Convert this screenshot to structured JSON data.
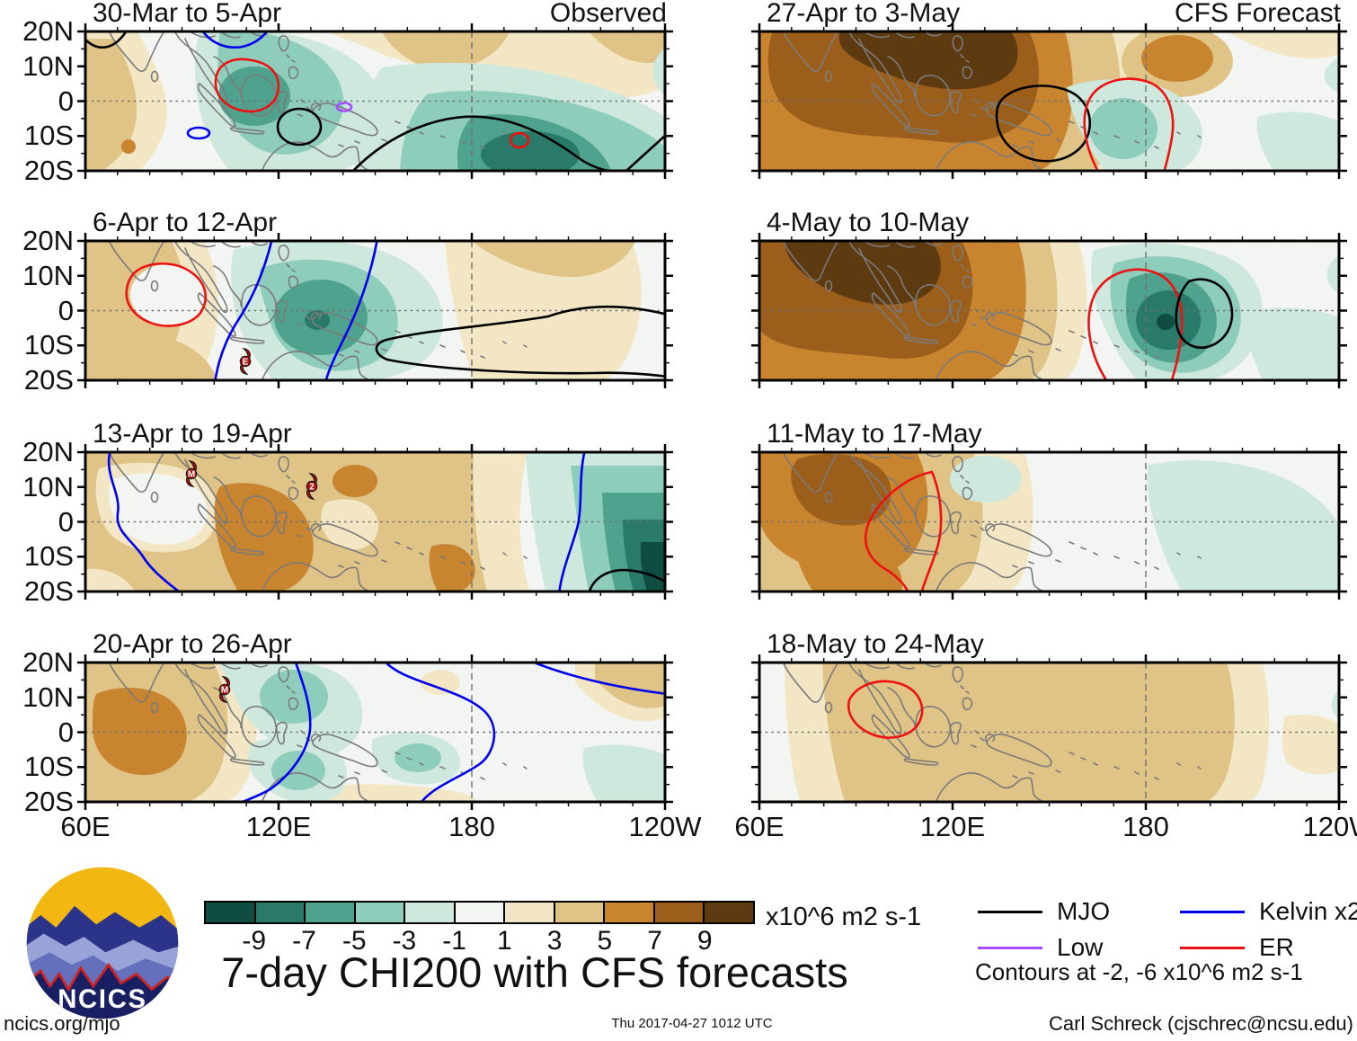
{
  "title": "7-day CHI200 with CFS forecasts",
  "panels": [
    {
      "title": "30-Mar to 5-Apr",
      "subtitle": "Observed"
    },
    {
      "title": "6-Apr to 12-Apr",
      "storms": [
        {
          "label": "E"
        }
      ]
    },
    {
      "title": "13-Apr to 19-Apr",
      "storms": [
        {
          "label": "M"
        },
        {
          "label": "2"
        }
      ]
    },
    {
      "title": "20-Apr to 26-Apr",
      "storms": [
        {
          "label": "M"
        }
      ]
    },
    {
      "title": "27-Apr to 3-May",
      "subtitle": "CFS Forecast"
    },
    {
      "title": "4-May to 10-May"
    },
    {
      "title": "11-May to 17-May"
    },
    {
      "title": "18-May to 24-May"
    }
  ],
  "axes": {
    "lat_labels": [
      "20N",
      "10N",
      "0",
      "10S",
      "20S"
    ],
    "lon_labels": [
      "60E",
      "120E",
      "180",
      "120W"
    ]
  },
  "colorbar": {
    "colors": [
      "#0f4c41",
      "#2a7a6a",
      "#4fa28e",
      "#8eccbc",
      "#cfe8dd",
      "#f3f5f2",
      "#f2e6c4",
      "#e0c386",
      "#c8842f",
      "#9c5e1b",
      "#5e3a10"
    ],
    "ticks": [
      "-9",
      "-7",
      "-5",
      "-3",
      "-1",
      "1",
      "3",
      "5",
      "7",
      "9"
    ],
    "units": "x10^6 m2 s-1"
  },
  "legend": {
    "items": [
      {
        "label": "MJO",
        "color": "#000000"
      },
      {
        "label": "Kelvin x2",
        "color": "#0000ee"
      },
      {
        "label": "Low",
        "color": "#a64dff"
      },
      {
        "label": "ER",
        "color": "#ee1111"
      }
    ],
    "note": "Contours at -2, -6 x10^6 m2 s-1"
  },
  "footer": {
    "left": "ncics.org/mjo",
    "center": "Thu 2017-04-27 1012 UTC",
    "right": "Carl Schreck (cjschrec@ncsu.edu)"
  },
  "logo": {
    "text": "NCICS"
  },
  "chart_data": {
    "type": "heatmap",
    "title": "7-day CHI200 with CFS forecasts",
    "variable": "200-hPa velocity potential (CHI200) anomaly, 7-day mean",
    "units": "x10^6 m2 s-1",
    "layout": "8 map panels in 4 rows x 2 columns; left column Observed weeks, right column CFS Forecast weeks",
    "xlabel_ticks": [
      "60E",
      "120E",
      "180",
      "120W"
    ],
    "ylabel_ticks": [
      "20N",
      "10N",
      "0",
      "10S",
      "20S"
    ],
    "lon_range_deg_east": [
      60,
      240
    ],
    "lat_range": [
      -20,
      20
    ],
    "fill_levels": [
      -9,
      -7,
      -5,
      -3,
      -1,
      1,
      3,
      5,
      7,
      9
    ],
    "fill_palette": [
      "#0f4c41",
      "#2a7a6a",
      "#4fa28e",
      "#8eccbc",
      "#cfe8dd",
      "#f3f5f2",
      "#f2e6c4",
      "#e0c386",
      "#c8842f",
      "#9c5e1b",
      "#5e3a10"
    ],
    "wave_contour_levels": [
      -2,
      -6
    ],
    "wave_contours": [
      {
        "name": "MJO",
        "color": "#000000"
      },
      {
        "name": "Kelvin x2",
        "color": "#0000ee"
      },
      {
        "name": "Low",
        "color": "#a64dff"
      },
      {
        "name": "ER",
        "color": "#ee1111"
      }
    ],
    "grid": {
      "equator_dotted": true,
      "dateline_dashed": true
    },
    "panels": [
      {
        "period": "30-Mar to 5-Apr",
        "source": "Observed",
        "features": [
          "Negative anomaly (-1 to -5, enhanced convection) over Maritime Continent with red ER oval, black MJO oval, small purple Low and blue Kelvin contours",
          "Negative center (-5 to -7) central South Pacific near 170W crossed by black MJO contour with small red ER circle",
          "Weak positive (+1 to +3) western Indian Ocean and subtropical Northwest/North Pacific"
        ]
      },
      {
        "period": "6-Apr to 12-Apr",
        "source": "Observed",
        "features": [
          "Red ER contour over southern India",
          "Negative (-1 to -5) centered near New Guinea flanked by two blue Kelvin contours",
          "Black MJO contour near 160W-120W south of equator",
          "Tropical cyclone symbol E southeast Indian Ocean near 105E 17S",
          "Positive (+1 to +3) western Indian Ocean and near date line"
        ]
      },
      {
        "period": "13-Apr to 19-Apr",
        "source": "Observed",
        "features": [
          "Broad positive (+1 to +5) from Indian Ocean to date line, maxima (+5) near Sumatra-Java-Borneo and near 150E-170E south",
          "Strong negative (-3 to -9) near 130W with black MJO contour in southeast corner",
          "Blue Kelvin contours near 65-90E and near 150W",
          "Tropical cyclone symbols M (Bay of Bengal) and 2 (Philippine Sea)"
        ]
      },
      {
        "period": "20-Apr to 26-Apr",
        "source": "Observed",
        "features": [
          "Positive (+1 to +5) over India and west Indian Ocean",
          "Negative (-1 to -3) cells near Philippines, New Guinea and central Pacific",
          "Wavy blue Kelvin contours through the Pacific",
          "Tropical cyclone symbol M east of Philippines near 130E 12N"
        ]
      },
      {
        "period": "27-Apr to 3-May",
        "source": "CFS Forecast",
        "features": [
          "Strong positive (+3 to +9, suppressed convection) Indian Ocean through Southeast Asia, maximum (+9) over Bay of Bengal / Indochina",
          "Black MJO contour over New Guinea region",
          "Red ER contour just west of date line",
          "Weak negative (-1 to -3) central equatorial Pacific and east of date line"
        ]
      },
      {
        "period": "4-May to 10-May",
        "source": "CFS Forecast",
        "features": [
          "Strong positive (+3 to +9) Indian Ocean and Southeast Asia",
          "Strong negative center (-3 to -9) near 165E-180 wrapped by red ER contour and black MJO contour",
          "Light negative (-1) across eastern Pacific"
        ]
      },
      {
        "period": "11-May to 17-May",
        "source": "CFS Forecast",
        "features": [
          "Positive (+1 to +7) Indian Ocean to Maritime Continent, maximum over Bay of Bengal",
          "Triangular red ER contour near 125-160E",
          "Weak negative (-1) patches central and east Pacific"
        ]
      },
      {
        "period": "18-May to 24-May",
        "source": "CFS Forecast",
        "features": [
          "Weak positive (+1 to +3) across Indian Ocean and Maritime Continent",
          "Small red ER contour over Malay Peninsula",
          "Near-neutral elsewhere"
        ]
      }
    ]
  }
}
